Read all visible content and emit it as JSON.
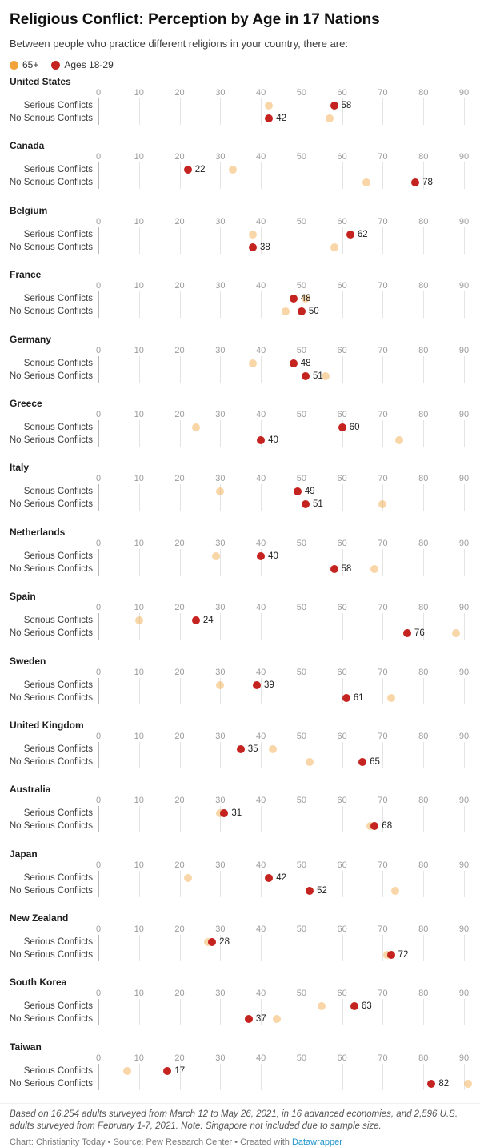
{
  "header": {
    "title": "Religious Conflict: Perception by Age in 17 Nations",
    "subtitle": "Between people who practice different religions in your country, there are:"
  },
  "legend": {
    "items": [
      {
        "label": "65+",
        "color": "#f2a33c"
      },
      {
        "label": "Ages 18-29",
        "color": "#c4231f"
      }
    ]
  },
  "footer": {
    "note": "Based on 16,254 adults surveyed from March 12 to May 26, 2021, in 16 advanced economies, and 2,596 U.S. adults surveyed from February 1-7, 2021. Note: Singapore not included due to sample size.",
    "credit_prefix": "Chart: Christianity Today • Source: Pew Research Center • Created with ",
    "credit_link": "Datawrapper",
    "link_color": "#2496cc"
  },
  "chart_data": {
    "type": "scatter",
    "title": "Religious Conflict: Perception by Age in 17 Nations",
    "subtitle": "Between people who practice different religions in your country, there are:",
    "legend_position": "top",
    "grid": true,
    "axis": {
      "min": 0,
      "max": 90,
      "tick_step": 10,
      "ticks": [
        0,
        10,
        20,
        30,
        40,
        50,
        60,
        70,
        80,
        90
      ]
    },
    "row_labels": {
      "serious": "Serious Conflicts",
      "no_serious": "No Serious Conflicts"
    },
    "series": [
      {
        "name": "65+",
        "color": "#f2a33c",
        "style": "faded",
        "labeled": false
      },
      {
        "name": "Ages 18-29",
        "color": "#c4231f",
        "style": "solid",
        "labeled": true
      }
    ],
    "countries": [
      {
        "name": "United States",
        "serious": {
          "age65": 42,
          "age18_29": 58
        },
        "no_serious": {
          "age65": 57,
          "age18_29": 42
        }
      },
      {
        "name": "Canada",
        "serious": {
          "age65": 33,
          "age18_29": 22
        },
        "no_serious": {
          "age65": 66,
          "age18_29": 78
        }
      },
      {
        "name": "Belgium",
        "serious": {
          "age65": 38,
          "age18_29": 62
        },
        "no_serious": {
          "age65": 58,
          "age18_29": 38
        }
      },
      {
        "name": "France",
        "serious": {
          "age65": 51,
          "age18_29": 48
        },
        "no_serious": {
          "age65": 46,
          "age18_29": 50
        }
      },
      {
        "name": "Germany",
        "serious": {
          "age65": 38,
          "age18_29": 48
        },
        "no_serious": {
          "age65": 56,
          "age18_29": 51
        }
      },
      {
        "name": "Greece",
        "serious": {
          "age65": 24,
          "age18_29": 60
        },
        "no_serious": {
          "age65": 74,
          "age18_29": 40
        }
      },
      {
        "name": "Italy",
        "serious": {
          "age65": 30,
          "age18_29": 49
        },
        "no_serious": {
          "age65": 70,
          "age18_29": 51
        }
      },
      {
        "name": "Netherlands",
        "serious": {
          "age65": 29,
          "age18_29": 40
        },
        "no_serious": {
          "age65": 68,
          "age18_29": 58
        }
      },
      {
        "name": "Spain",
        "serious": {
          "age65": 10,
          "age18_29": 24
        },
        "no_serious": {
          "age65": 88,
          "age18_29": 76
        }
      },
      {
        "name": "Sweden",
        "serious": {
          "age65": 30,
          "age18_29": 39
        },
        "no_serious": {
          "age65": 72,
          "age18_29": 61
        }
      },
      {
        "name": "United Kingdom",
        "serious": {
          "age65": 43,
          "age18_29": 35
        },
        "no_serious": {
          "age65": 52,
          "age18_29": 65
        }
      },
      {
        "name": "Australia",
        "serious": {
          "age65": 30,
          "age18_29": 31
        },
        "no_serious": {
          "age65": 67,
          "age18_29": 68
        }
      },
      {
        "name": "Japan",
        "serious": {
          "age65": 22,
          "age18_29": 42
        },
        "no_serious": {
          "age65": 73,
          "age18_29": 52
        }
      },
      {
        "name": "New Zealand",
        "serious": {
          "age65": 27,
          "age18_29": 28
        },
        "no_serious": {
          "age65": 71,
          "age18_29": 72
        }
      },
      {
        "name": "South Korea",
        "serious": {
          "age65": 55,
          "age18_29": 63
        },
        "no_serious": {
          "age65": 44,
          "age18_29": 37
        }
      },
      {
        "name": "Taiwan",
        "serious": {
          "age65": 7,
          "age18_29": 17
        },
        "no_serious": {
          "age65": 91,
          "age18_29": 82
        }
      }
    ]
  }
}
